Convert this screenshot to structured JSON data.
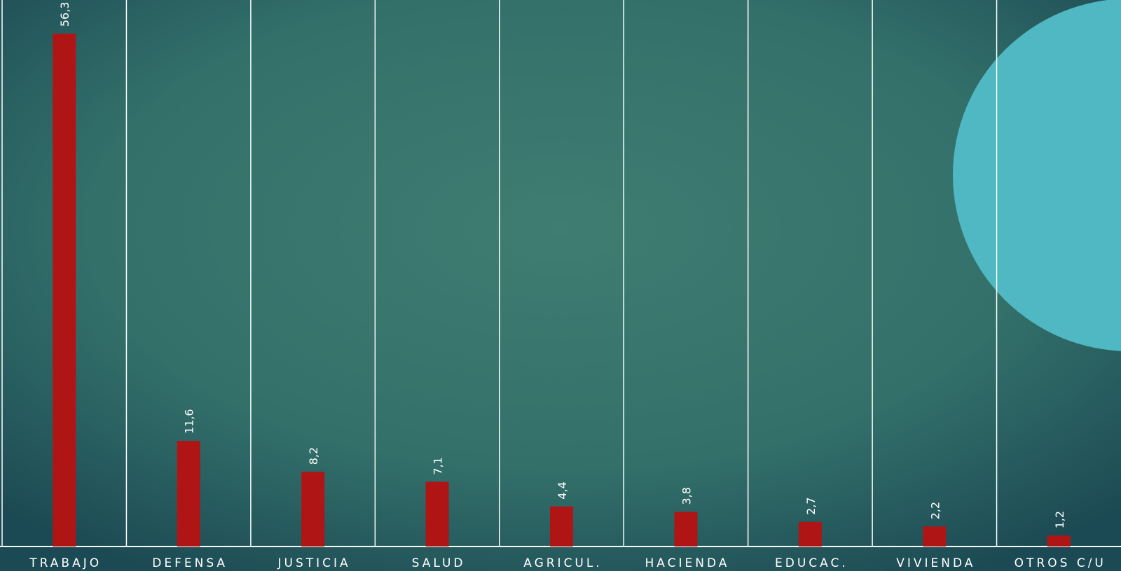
{
  "chart_data": {
    "type": "bar",
    "categories": [
      "TRABAJO",
      "DEFENSA",
      "JUSTICIA",
      "SALUD",
      "AGRICUL.",
      "HACIENDA",
      "EDUCAC.",
      "VIVIENDA",
      "OTROS C/U"
    ],
    "values": [
      56.3,
      11.6,
      8.2,
      7.1,
      4.4,
      3.8,
      2.7,
      2.2,
      1.2
    ],
    "value_labels": [
      "56,3",
      "11,6",
      "8,2",
      "7,1",
      "4,4",
      "3,8",
      "2,7",
      "2,2",
      "1,2"
    ],
    "color": "#b01515",
    "ylim": [
      0,
      60
    ]
  }
}
